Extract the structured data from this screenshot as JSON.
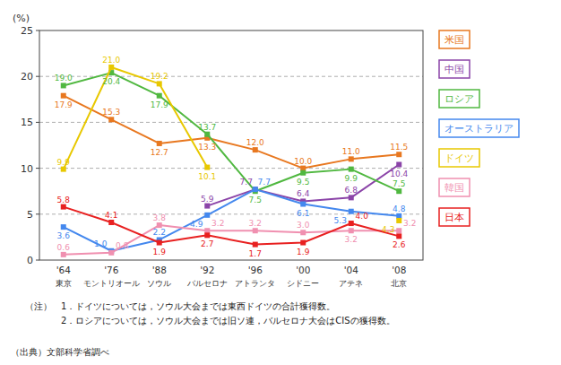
{
  "chart_data": {
    "type": "line",
    "categories": [
      [
        "'64",
        "東京"
      ],
      [
        "'76",
        "モントリオール"
      ],
      [
        "'88",
        "ソウル"
      ],
      [
        "'92",
        "バルセロナ"
      ],
      [
        "'96",
        "アトランタ"
      ],
      [
        "'00",
        "シドニー"
      ],
      [
        "'04",
        "アテネ"
      ],
      [
        "'08",
        "北京"
      ]
    ],
    "series": [
      {
        "name": "米国",
        "color": "#E87820",
        "marker": "square",
        "values": [
          17.9,
          15.3,
          12.7,
          13.3,
          12.0,
          10.0,
          11.0,
          11.5
        ],
        "value_labels": [
          "17.9",
          "15.3",
          "12.7",
          "13.3",
          "12.0",
          "10.0",
          "11.0",
          "11.5"
        ]
      },
      {
        "name": "中国",
        "color": "#8B44A8",
        "marker": "square",
        "values": [
          null,
          null,
          null,
          5.9,
          7.7,
          6.4,
          6.8,
          10.4
        ],
        "value_labels": [
          null,
          null,
          null,
          "5.9",
          "7.7",
          "6.4",
          "6.8",
          "10.4"
        ]
      },
      {
        "name": "ロシア",
        "color": "#50B840",
        "marker": "square",
        "values": [
          19.0,
          20.4,
          17.9,
          13.7,
          7.5,
          9.5,
          9.9,
          7.5
        ],
        "value_labels": [
          "19.0",
          "20.4",
          "17.9",
          "13.7",
          "7.5",
          "9.5",
          "9.9",
          "7.5"
        ]
      },
      {
        "name": "オーストラリア",
        "color": "#4488EE",
        "marker": "square",
        "values": [
          3.6,
          1.0,
          2.2,
          4.9,
          7.7,
          6.1,
          5.3,
          4.8
        ],
        "value_labels": [
          "3.6",
          "1.0",
          "2.2",
          "4.9",
          "7.7",
          "6.1",
          "5.3",
          "4.8"
        ]
      },
      {
        "name": "ドイツ",
        "color": "#E8C800",
        "marker": "square",
        "values": [
          9.9,
          21.0,
          19.2,
          10.1,
          null,
          null,
          null,
          4.3
        ],
        "value_labels": [
          "9.9",
          "21.0",
          "19.2",
          "10.1",
          null,
          null,
          null,
          "4.3"
        ]
      },
      {
        "name": "韓国",
        "color": "#F090B0",
        "marker": "square",
        "values": [
          0.6,
          0.8,
          3.8,
          3.2,
          3.2,
          3.0,
          3.2,
          3.2
        ],
        "value_labels": [
          "0.6",
          "0.8",
          "3.8",
          "3.2",
          "3.2",
          "3.0",
          "3.2",
          "3.2"
        ]
      },
      {
        "name": "日本",
        "color": "#E82020",
        "marker": "square",
        "values": [
          5.8,
          4.1,
          1.9,
          2.7,
          1.7,
          1.9,
          4.0,
          2.6
        ],
        "value_labels": [
          "5.8",
          "4.1",
          "1.9",
          "2.7",
          "1.7",
          "1.9",
          "4.0",
          "2.6"
        ]
      }
    ],
    "ylim": [
      0,
      25
    ],
    "yticks": [
      0,
      5,
      10,
      15,
      20,
      25
    ],
    "ylabel": "(%)",
    "grid": true,
    "legend": "right",
    "data_labels": true,
    "notes": [
      "（注）　1．ドイツについては，ソウル大会までは東西ドイツの合計獲得数。",
      "　　　　2．ロシアについては，ソウル大会までは旧ソ連，バルセロナ大会はCISの獲得数。"
    ],
    "source": "（出典）文部科学省調べ"
  }
}
